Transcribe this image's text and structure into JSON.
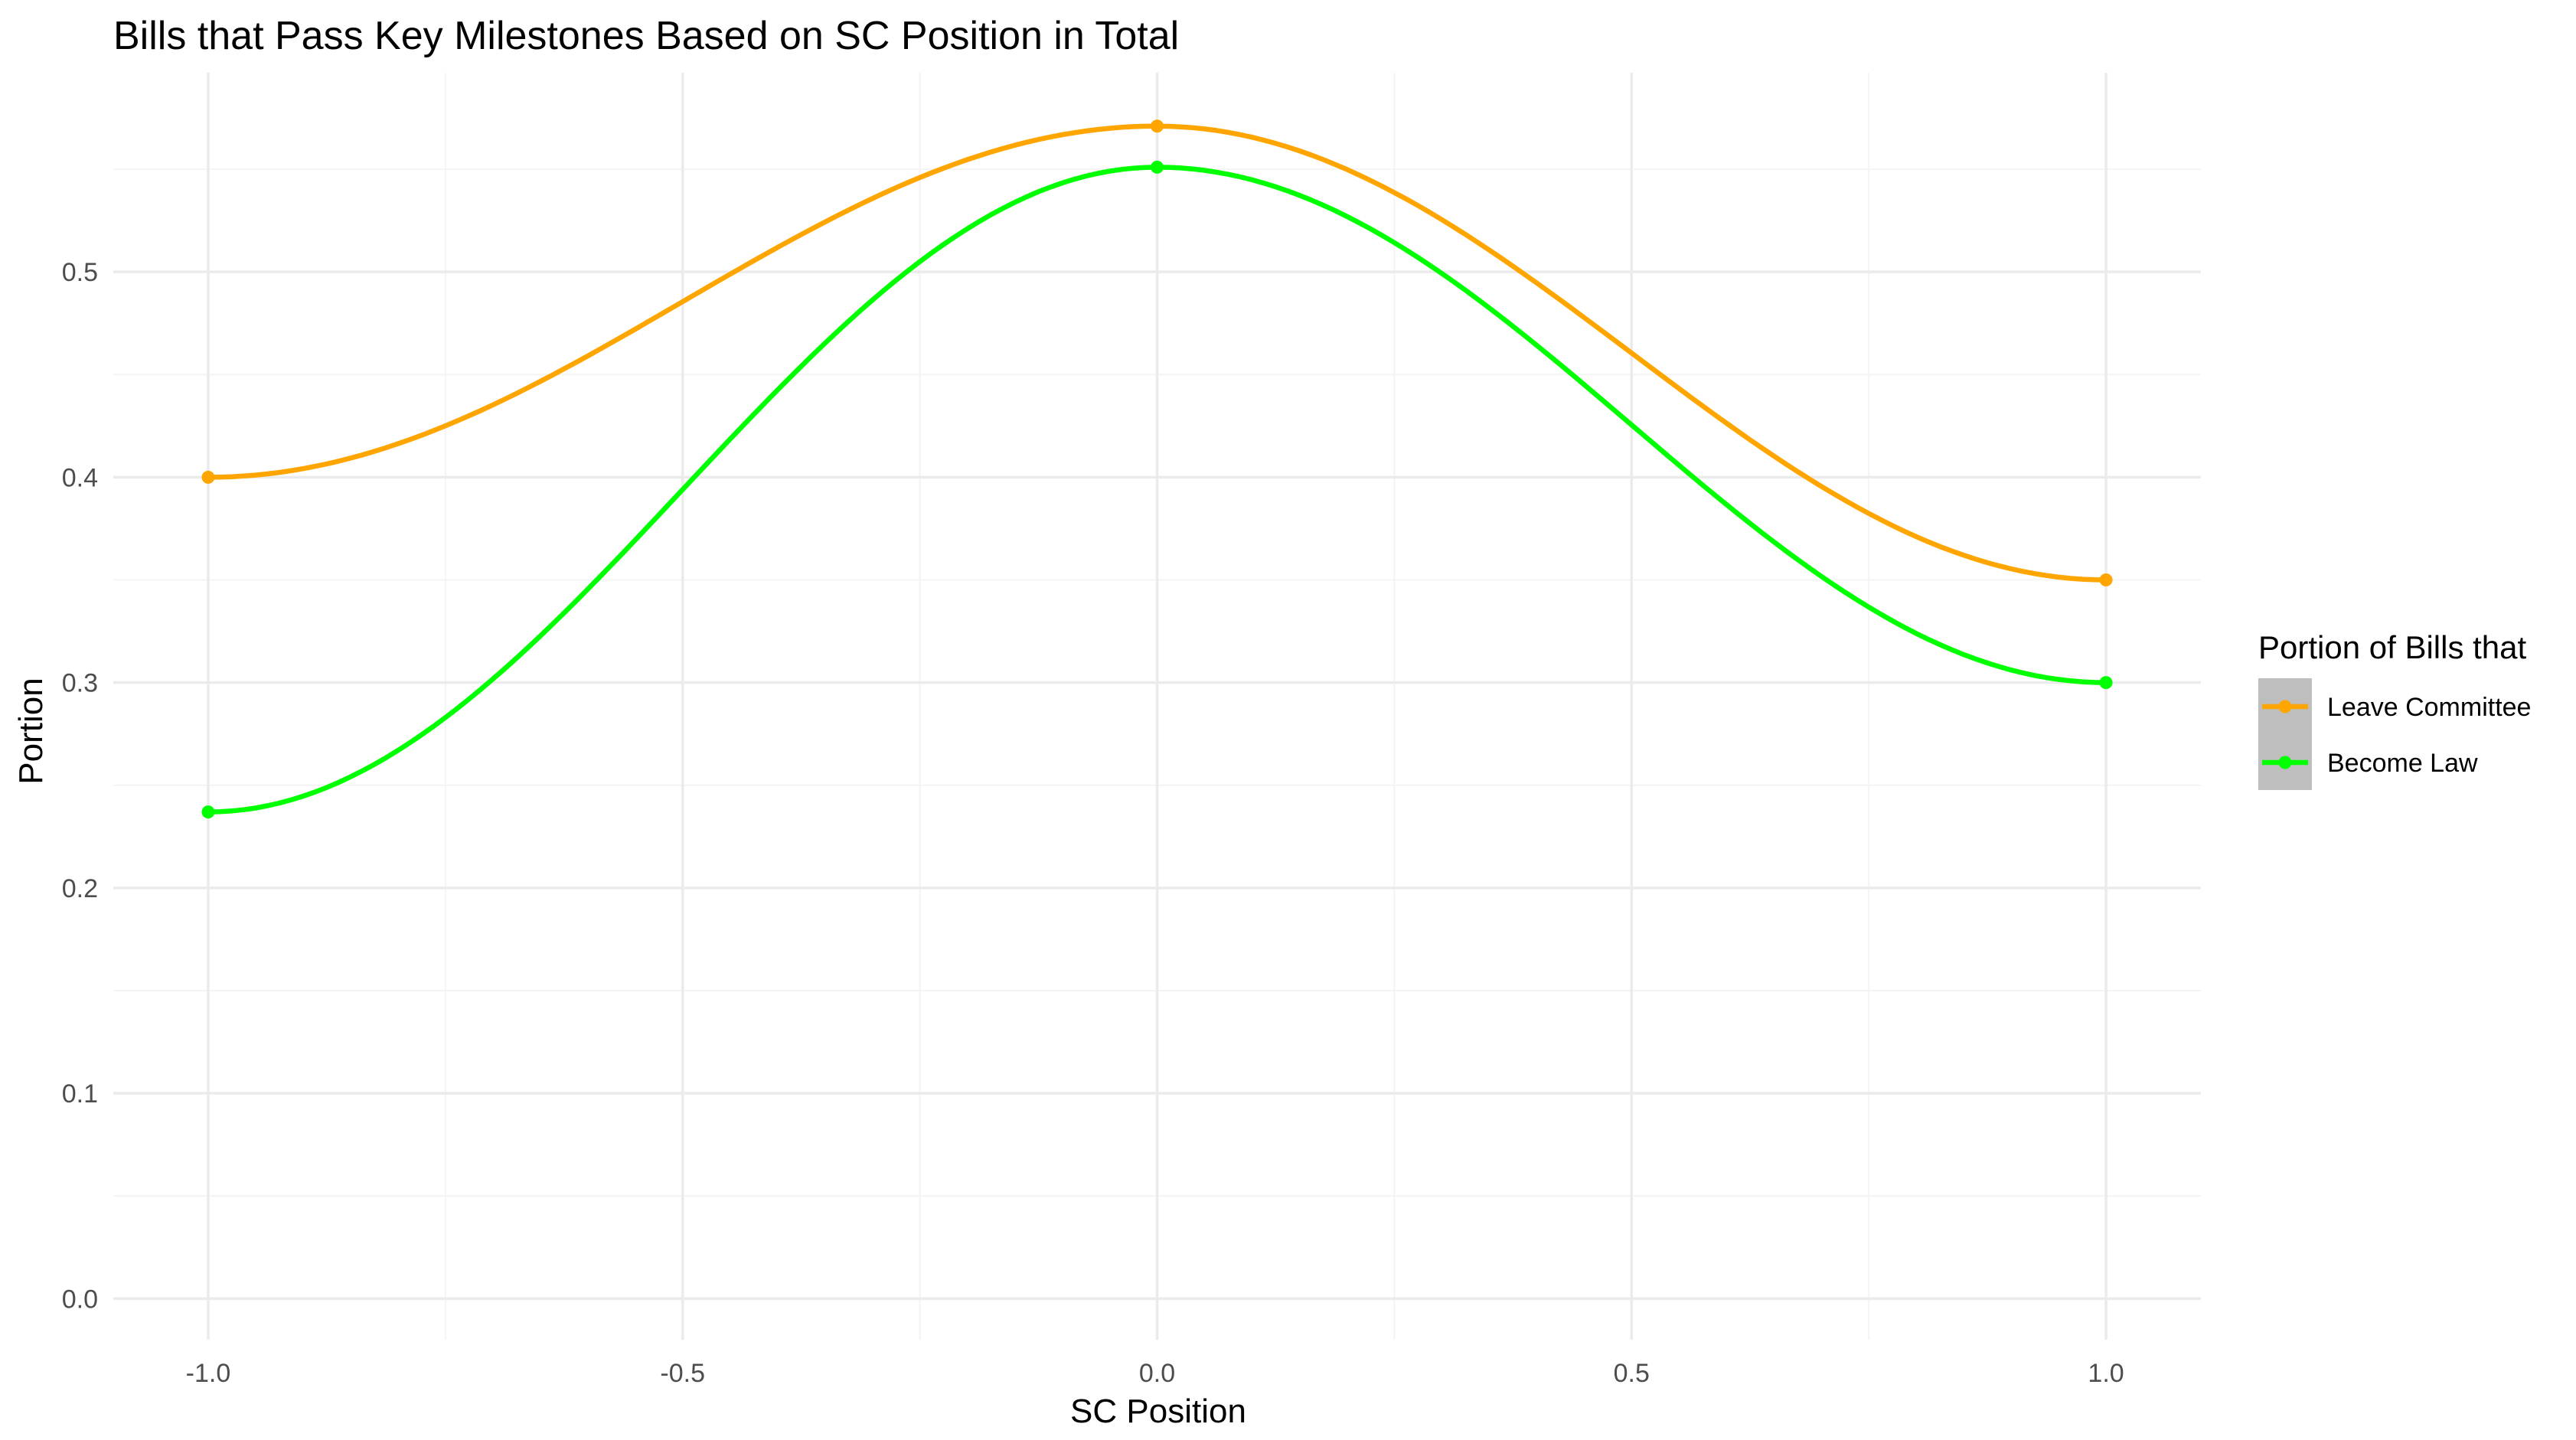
{
  "chart_data": {
    "type": "line",
    "title": "Bills that Pass Key Milestones Based on SC Position in Total",
    "xlabel": "SC Position",
    "ylabel": "Portion",
    "x": [
      -1.0,
      0.0,
      1.0
    ],
    "xlim": [
      -1.1,
      1.1
    ],
    "ylim": [
      -0.02,
      0.597
    ],
    "x_ticks": [
      -1.0,
      -0.5,
      0.0,
      0.5,
      1.0
    ],
    "x_tick_labels": [
      "-1.0",
      "-0.5",
      "0.0",
      "0.5",
      "1.0"
    ],
    "y_ticks": [
      0.0,
      0.1,
      0.2,
      0.3,
      0.4,
      0.5
    ],
    "y_tick_labels": [
      "0.0",
      "0.1",
      "0.2",
      "0.3",
      "0.4",
      "0.5"
    ],
    "grid": true,
    "smoothed": true,
    "legend": {
      "title": "Portion of Bills that",
      "position": "right"
    },
    "series": [
      {
        "name": "Leave Committee",
        "color": "#FFA500",
        "x": [
          -1.0,
          0.0,
          1.0
        ],
        "values": [
          0.4,
          0.571,
          0.35
        ]
      },
      {
        "name": "Become Law",
        "color": "#00FF00",
        "x": [
          -1.0,
          0.0,
          1.0
        ],
        "values": [
          0.237,
          0.551,
          0.3
        ]
      }
    ]
  },
  "colors": {
    "background": "#FFFFFF",
    "grid": "#EBEBEB",
    "legend_key_background": "#BEBEBE"
  }
}
